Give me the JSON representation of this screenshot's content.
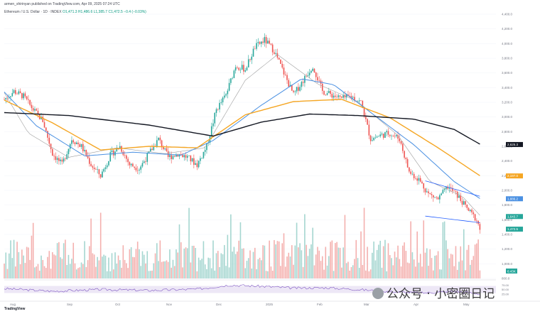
{
  "header": {
    "publisher": "armen_shirinyan published on TradingView.com, Apr 09, 2025 07:24 UTC",
    "symbol": "Ethereum / U.S. Dollar · 1D · INDEX",
    "ohlc": "O1,471.3  H1,486.6  L1,385.7  C1,472.5  −0.4 (−0.03%)"
  },
  "watermark": "公众号 · 小密圈日记",
  "logo_text": "TradingView",
  "colors": {
    "up": "#26a69a",
    "down": "#ef5350",
    "ma200": "#131722",
    "ma100": "#f5a623",
    "ma50": "#4a90e2",
    "ma20": "#9e9e9e",
    "channel": "#2962ff"
  },
  "chart_data": {
    "type": "candlestick",
    "x_labels": [
      "Aug",
      "Sep",
      "Oct",
      "Nov",
      "Dec",
      "2025",
      "Feb",
      "Mar",
      "Apr",
      "May"
    ],
    "y_labels": [
      "4,400.0",
      "4,200.0",
      "4,000.0",
      "3,800.0",
      "3,600.0",
      "3,400.0",
      "3,200.0",
      "3,000.0",
      "2,800.0",
      "2,600.0",
      "2,400.0",
      "2,200.0",
      "2,000.0",
      "1,800.0",
      "1,600.0",
      "1,400.0",
      "1,200.0",
      "1,000.0",
      "800.0"
    ],
    "ylim": [
      800,
      4400
    ],
    "price_badges": [
      {
        "label": "2,625.3",
        "value": 2625,
        "color": "#131722"
      },
      {
        "label": "2,197.0",
        "value": 2197,
        "color": "#f5a623"
      },
      {
        "label": "1,886.2",
        "value": 1886,
        "color": "#4a90e2"
      },
      {
        "label": "1,643.7",
        "value": 1644,
        "color": "#26a69a"
      },
      {
        "label": "1,472.5",
        "value": 1472,
        "color": "#26a69a"
      }
    ],
    "rsi_labels": [
      "75.00",
      "50.00",
      "25.00"
    ],
    "rsi_ylim": [
      0,
      100
    ],
    "volume_label": "6.43K",
    "price_anchors": [
      [
        0,
        3240
      ],
      [
        6,
        3350
      ],
      [
        12,
        3280
      ],
      [
        18,
        3100
      ],
      [
        24,
        2950
      ],
      [
        30,
        2500
      ],
      [
        36,
        2350
      ],
      [
        42,
        2700
      ],
      [
        48,
        2600
      ],
      [
        54,
        2350
      ],
      [
        60,
        2200
      ],
      [
        66,
        2480
      ],
      [
        72,
        2600
      ],
      [
        78,
        2350
      ],
      [
        84,
        2300
      ],
      [
        90,
        2500
      ],
      [
        96,
        2700
      ],
      [
        102,
        2450
      ],
      [
        108,
        2500
      ],
      [
        114,
        2450
      ],
      [
        120,
        2350
      ],
      [
        126,
        2600
      ],
      [
        132,
        3100
      ],
      [
        138,
        3300
      ],
      [
        144,
        3700
      ],
      [
        150,
        3650
      ],
      [
        156,
        3950
      ],
      [
        162,
        4050
      ],
      [
        168,
        3900
      ],
      [
        174,
        3600
      ],
      [
        180,
        3300
      ],
      [
        186,
        3500
      ],
      [
        192,
        3700
      ],
      [
        198,
        3350
      ],
      [
        204,
        3300
      ],
      [
        210,
        3250
      ],
      [
        216,
        3280
      ],
      [
        222,
        3200
      ],
      [
        228,
        2700
      ],
      [
        234,
        2750
      ],
      [
        240,
        2780
      ],
      [
        246,
        2700
      ],
      [
        252,
        2250
      ],
      [
        258,
        2150
      ],
      [
        264,
        1950
      ],
      [
        270,
        1880
      ],
      [
        276,
        2050
      ],
      [
        282,
        1930
      ],
      [
        288,
        1750
      ],
      [
        294,
        1600
      ],
      [
        296,
        1472
      ]
    ],
    "ma200": [
      [
        0,
        3060
      ],
      [
        40,
        3020
      ],
      [
        90,
        2890
      ],
      [
        130,
        2740
      ],
      [
        160,
        2930
      ],
      [
        190,
        3040
      ],
      [
        220,
        3020
      ],
      [
        255,
        2970
      ],
      [
        280,
        2830
      ],
      [
        296,
        2630
      ]
    ],
    "ma100": [
      [
        0,
        3230
      ],
      [
        30,
        2920
      ],
      [
        60,
        2550
      ],
      [
        90,
        2600
      ],
      [
        120,
        2580
      ],
      [
        150,
        3030
      ],
      [
        180,
        3210
      ],
      [
        210,
        3240
      ],
      [
        240,
        2990
      ],
      [
        270,
        2580
      ],
      [
        296,
        2200
      ]
    ],
    "ma50": [
      [
        0,
        3340
      ],
      [
        20,
        2880
      ],
      [
        50,
        2470
      ],
      [
        80,
        2520
      ],
      [
        110,
        2480
      ],
      [
        130,
        2680
      ],
      [
        160,
        3160
      ],
      [
        185,
        3520
      ],
      [
        205,
        3440
      ],
      [
        230,
        3030
      ],
      [
        255,
        2620
      ],
      [
        280,
        2120
      ],
      [
        296,
        1890
      ]
    ],
    "ma20": [
      [
        0,
        3330
      ],
      [
        15,
        2780
      ],
      [
        40,
        2450
      ],
      [
        70,
        2580
      ],
      [
        100,
        2500
      ],
      [
        125,
        2580
      ],
      [
        150,
        3500
      ],
      [
        170,
        3850
      ],
      [
        195,
        3450
      ],
      [
        220,
        3210
      ],
      [
        245,
        2750
      ],
      [
        265,
        2120
      ],
      [
        285,
        1920
      ],
      [
        296,
        1660
      ]
    ],
    "channel": {
      "upper": [
        [
          262,
          2130
        ],
        [
          296,
          1920
        ]
      ],
      "lower": [
        [
          262,
          1650
        ],
        [
          296,
          1560
        ]
      ]
    },
    "volume_scale_max": 1,
    "rsi_anchors": [
      [
        0,
        55
      ],
      [
        30,
        40
      ],
      [
        60,
        50
      ],
      [
        90,
        45
      ],
      [
        120,
        52
      ],
      [
        140,
        75
      ],
      [
        160,
        68
      ],
      [
        180,
        58
      ],
      [
        200,
        60
      ],
      [
        220,
        50
      ],
      [
        240,
        38
      ],
      [
        260,
        30
      ],
      [
        280,
        40
      ],
      [
        296,
        25
      ]
    ]
  }
}
